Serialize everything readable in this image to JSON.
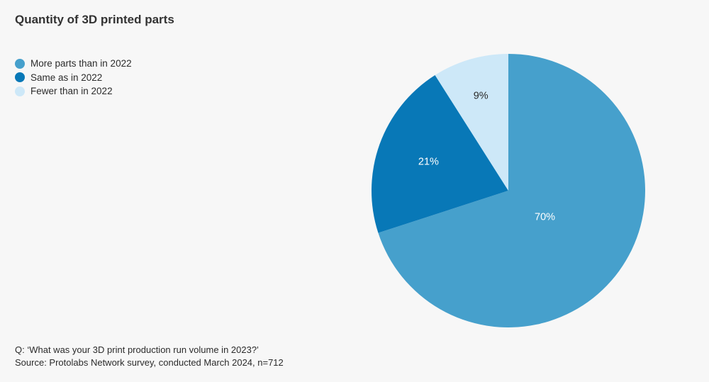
{
  "chart_data": {
    "type": "pie",
    "title": "Quantity of 3D printed parts",
    "categories": [
      "More parts than in 2022",
      "Same as in 2022",
      "Fewer than in 2022"
    ],
    "values": [
      70,
      21,
      9
    ],
    "value_labels": [
      "70%",
      "21%",
      "9%"
    ],
    "colors": [
      "#46a0cc",
      "#0878b7",
      "#cde8f8"
    ],
    "label_colors": [
      "#ffffff",
      "#ffffff",
      "#2b2b2b"
    ],
    "start_angle": "12 o'clock",
    "direction": "clockwise",
    "legend_position": "top-left"
  },
  "footer": {
    "question": "Q: ‘What was your 3D print production run volume in 2023?’",
    "source": "Source: Protolabs Network survey, conducted March 2024, n=712"
  }
}
